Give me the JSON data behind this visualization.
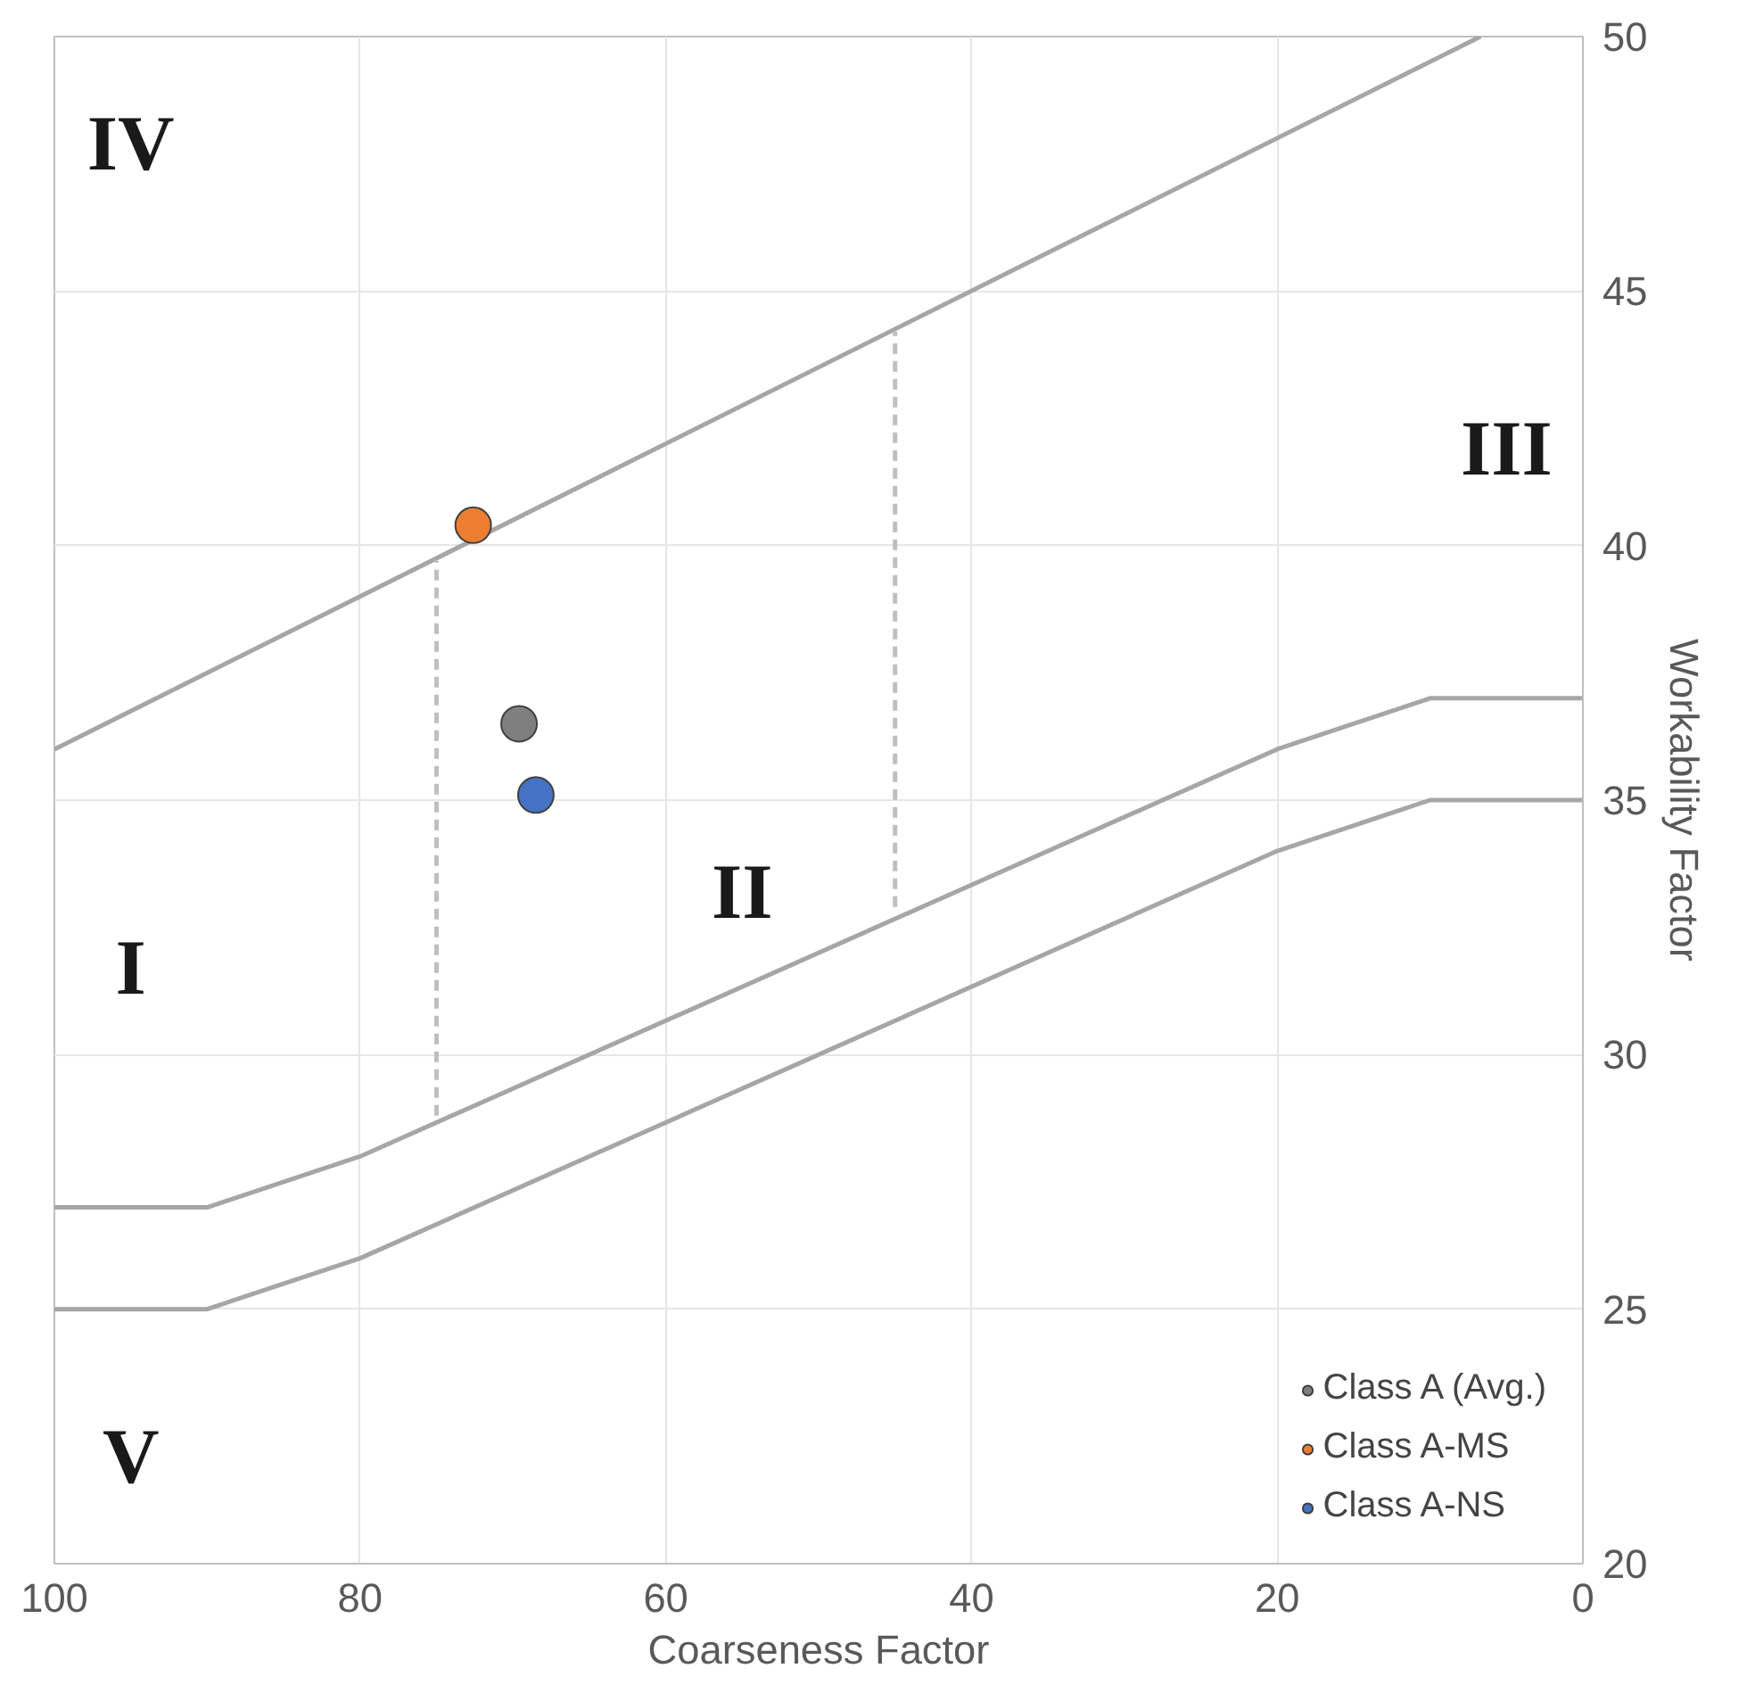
{
  "chart_data": {
    "type": "scatter",
    "xlabel": "Coarseness Factor",
    "ylabel": "Workability Factor",
    "xlim": [
      100,
      0
    ],
    "ylim": [
      20,
      50
    ],
    "xticks": [
      100,
      80,
      60,
      40,
      20,
      0
    ],
    "yticks": [
      20,
      25,
      30,
      35,
      40,
      45,
      50
    ],
    "grid": true,
    "legend": "bottom right",
    "series": [
      {
        "type": "line",
        "color": "#a6a6a6",
        "line_style": "solid",
        "marker": "none",
        "x": [
          100,
          6.7
        ],
        "values": [
          36,
          50
        ]
      },
      {
        "type": "line",
        "color": "#a6a6a6",
        "line_style": "solid",
        "marker": "none",
        "x": [
          100,
          90,
          80,
          20,
          10,
          0
        ],
        "values": [
          27,
          27,
          28,
          36,
          37,
          37
        ]
      },
      {
        "type": "line",
        "color": "#a6a6a6",
        "line_style": "solid",
        "marker": "none",
        "x": [
          100,
          90,
          80,
          20,
          10,
          0
        ],
        "values": [
          25,
          25,
          26,
          34,
          35,
          35
        ]
      },
      {
        "type": "line",
        "color": "#bfbfbf",
        "line_style": "dashed",
        "marker": "none",
        "x": [
          75,
          75
        ],
        "values": [
          28.8,
          39.7
        ]
      },
      {
        "type": "line",
        "color": "#bfbfbf",
        "line_style": "dashed",
        "marker": "none",
        "x": [
          45,
          45
        ],
        "values": [
          32.9,
          44.2
        ]
      },
      {
        "name": "Class A (Avg.)",
        "color": "#7f7f7f",
        "marker": "circle",
        "x": [
          69.6
        ],
        "values": [
          36.5
        ]
      },
      {
        "name": "Class A-MS",
        "color": "#ed7d31",
        "marker": "circle",
        "x": [
          72.6
        ],
        "values": [
          40.4
        ]
      },
      {
        "name": "Class A-NS",
        "color": "#4472c4",
        "marker": "circle",
        "x": [
          68.5
        ],
        "values": [
          35.1
        ]
      }
    ],
    "annotations": [
      "IV",
      "III",
      "II",
      "I",
      "V"
    ]
  }
}
